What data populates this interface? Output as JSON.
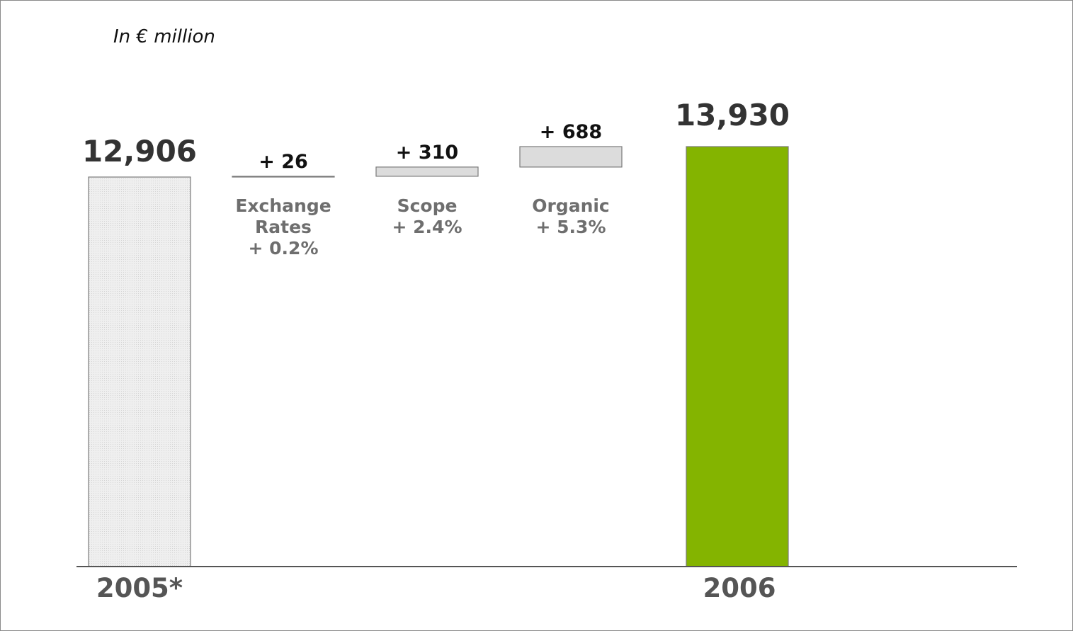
{
  "unit_label": "In  € million",
  "chart_data": {
    "type": "bar",
    "subtype": "waterfall",
    "categories": [
      "2005*",
      "Exchange Rates",
      "Scope",
      "Organic",
      "2006"
    ],
    "start": {
      "label": "2005*",
      "value": 12906,
      "value_label": "12,906"
    },
    "steps": [
      {
        "label_lines": [
          "Exchange",
          "Rates",
          "+ 0.2%"
        ],
        "value": 26,
        "value_label": "+ 26"
      },
      {
        "label_lines": [
          "Scope",
          "+ 2.4%"
        ],
        "value": 310,
        "value_label": "+ 310"
      },
      {
        "label_lines": [
          "Organic",
          "+  5.3%"
        ],
        "value": 688,
        "value_label": "+ 688"
      }
    ],
    "end": {
      "label": "2006",
      "value": 13930,
      "value_label": "13,930"
    },
    "colors": {
      "start_bar": "#ececec",
      "step_bar": "#dcdcdc",
      "end_bar": "#84b400",
      "outline": "#7a7a7a",
      "baseline": "#555555"
    }
  }
}
